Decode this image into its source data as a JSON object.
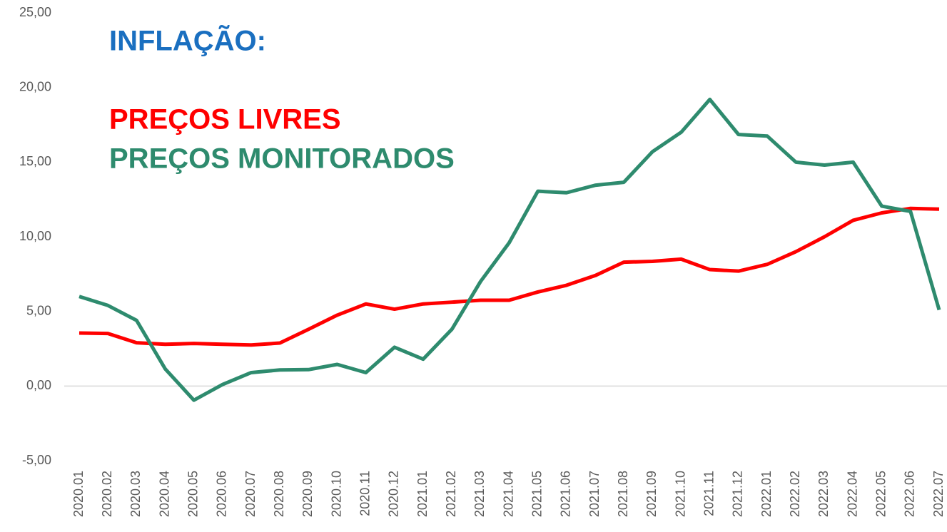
{
  "chart_data": {
    "type": "line",
    "title": "INFLAÇÃO:",
    "categories": [
      "2020.01",
      "2020.02",
      "2020.03",
      "2020.04",
      "2020.05",
      "2020.06",
      "2020.07",
      "2020.08",
      "2020.09",
      "2020.10",
      "2020.11",
      "2020.12",
      "2021.01",
      "2021.02",
      "2021.03",
      "2021.04",
      "2021.05",
      "2021.06",
      "2021.07",
      "2021.08",
      "2021.09",
      "2021.10",
      "2021.11",
      "2021.12",
      "2022.01",
      "2022.02",
      "2022.03",
      "2022.04",
      "2022.05",
      "2022.06",
      "2022.07"
    ],
    "series": [
      {
        "name": "PREÇOS LIVRES",
        "color": "#ff0000",
        "values": [
          3.55,
          3.52,
          2.9,
          2.8,
          2.85,
          2.8,
          2.75,
          2.88,
          3.8,
          4.75,
          5.5,
          5.15,
          5.5,
          5.62,
          5.75,
          5.75,
          6.3,
          6.75,
          7.4,
          8.3,
          8.35,
          8.5,
          7.8,
          7.7,
          8.15,
          9.0,
          10.0,
          11.1,
          11.6,
          11.9,
          11.85
        ]
      },
      {
        "name": "PREÇOS MONITORADOS",
        "color": "#2e8b6e",
        "values": [
          6.0,
          5.4,
          4.4,
          1.15,
          -0.95,
          0.1,
          0.9,
          1.08,
          1.1,
          1.45,
          0.9,
          2.6,
          1.8,
          3.8,
          7.0,
          9.6,
          13.05,
          12.95,
          13.45,
          13.65,
          15.7,
          17.0,
          19.2,
          16.85,
          16.75,
          15.0,
          14.8,
          15.0,
          12.05,
          11.7,
          5.1
        ]
      }
    ],
    "title_color": "#1a6fc0",
    "ylim": [
      -5,
      25
    ],
    "yticks": [
      {
        "value": -5,
        "label": "-5,00"
      },
      {
        "value": 0,
        "label": "0,00"
      },
      {
        "value": 5,
        "label": "5,00"
      },
      {
        "value": 10,
        "label": "10,00"
      },
      {
        "value": 15,
        "label": "15,00"
      },
      {
        "value": 20,
        "label": "20,00"
      },
      {
        "value": 25,
        "label": "25,00"
      }
    ],
    "grid": false
  }
}
